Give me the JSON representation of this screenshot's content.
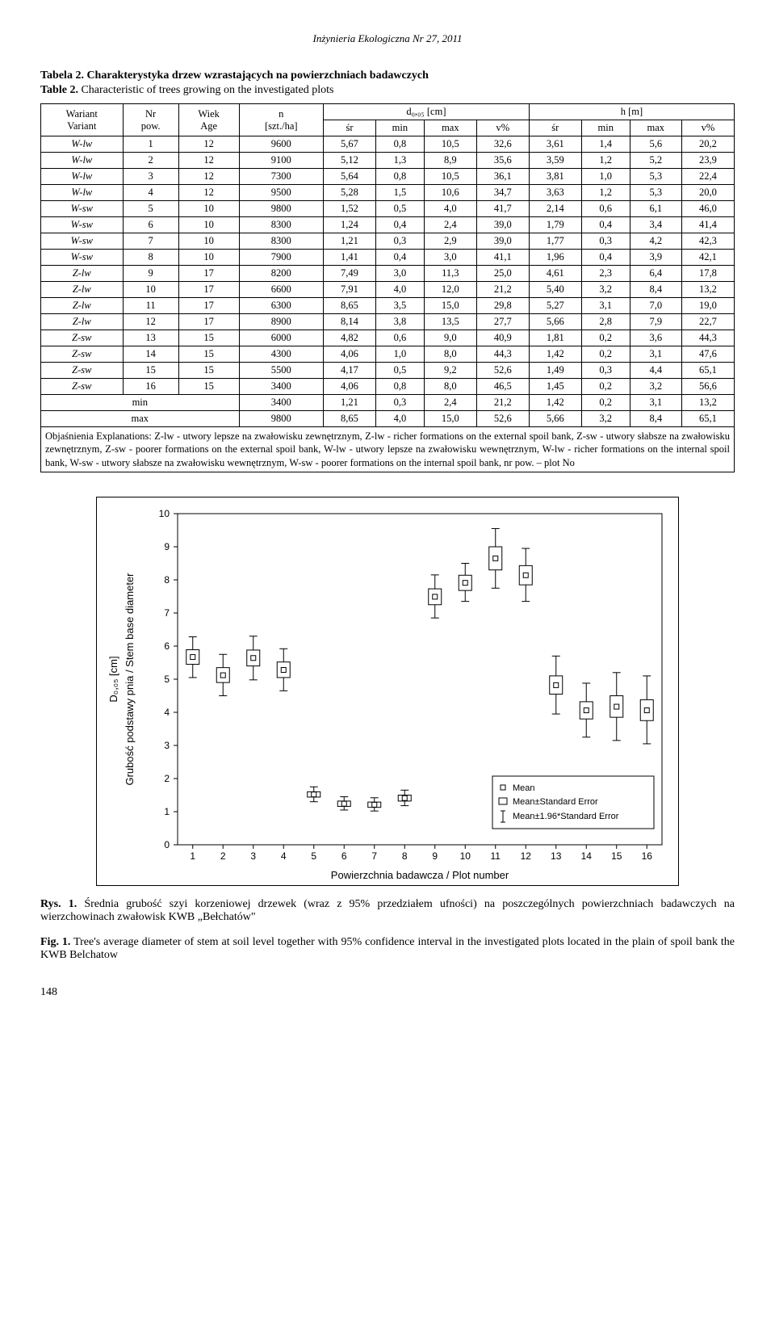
{
  "running_header": "Inżynieria Ekologiczna Nr 27, 2011",
  "table_caption_pl": "Tabela 2. Charakterystyka drzew wzrastających na powierzchniach badawczych",
  "table_caption_en_bold": "Table 2.",
  "table_caption_en_rest": " Characteristic of trees growing on the investigated plots",
  "headers": {
    "wariant": "Wariant",
    "variant": "Variant",
    "nr": "Nr",
    "pow": "pow.",
    "wiek": "Wiek",
    "age": "Age",
    "n": "n",
    "n_unit": "[szt./ha]",
    "d_label": "d₀,₀₅ [cm]",
    "h_label": "h [m]",
    "sr": "śr",
    "min": "min",
    "max": "max",
    "vpct": "v%"
  },
  "rows": [
    [
      "W-lw",
      "1",
      "12",
      "9600",
      "5,67",
      "0,8",
      "10,5",
      "32,6",
      "3,61",
      "1,4",
      "5,6",
      "20,2"
    ],
    [
      "W-lw",
      "2",
      "12",
      "9100",
      "5,12",
      "1,3",
      "8,9",
      "35,6",
      "3,59",
      "1,2",
      "5,2",
      "23,9"
    ],
    [
      "W-lw",
      "3",
      "12",
      "7300",
      "5,64",
      "0,8",
      "10,5",
      "36,1",
      "3,81",
      "1,0",
      "5,3",
      "22,4"
    ],
    [
      "W-lw",
      "4",
      "12",
      "9500",
      "5,28",
      "1,5",
      "10,6",
      "34,7",
      "3,63",
      "1,2",
      "5,3",
      "20,0"
    ],
    [
      "W-sw",
      "5",
      "10",
      "9800",
      "1,52",
      "0,5",
      "4,0",
      "41,7",
      "2,14",
      "0,6",
      "6,1",
      "46,0"
    ],
    [
      "W-sw",
      "6",
      "10",
      "8300",
      "1,24",
      "0,4",
      "2,4",
      "39,0",
      "1,79",
      "0,4",
      "3,4",
      "41,4"
    ],
    [
      "W-sw",
      "7",
      "10",
      "8300",
      "1,21",
      "0,3",
      "2,9",
      "39,0",
      "1,77",
      "0,3",
      "4,2",
      "42,3"
    ],
    [
      "W-sw",
      "8",
      "10",
      "7900",
      "1,41",
      "0,4",
      "3,0",
      "41,1",
      "1,96",
      "0,4",
      "3,9",
      "42,1"
    ],
    [
      "Z-lw",
      "9",
      "17",
      "8200",
      "7,49",
      "3,0",
      "11,3",
      "25,0",
      "4,61",
      "2,3",
      "6,4",
      "17,8"
    ],
    [
      "Z-lw",
      "10",
      "17",
      "6600",
      "7,91",
      "4,0",
      "12,0",
      "21,2",
      "5,40",
      "3,2",
      "8,4",
      "13,2"
    ],
    [
      "Z-lw",
      "11",
      "17",
      "6300",
      "8,65",
      "3,5",
      "15,0",
      "29,8",
      "5,27",
      "3,1",
      "7,0",
      "19,0"
    ],
    [
      "Z-lw",
      "12",
      "17",
      "8900",
      "8,14",
      "3,8",
      "13,5",
      "27,7",
      "5,66",
      "2,8",
      "7,9",
      "22,7"
    ],
    [
      "Z-sw",
      "13",
      "15",
      "6000",
      "4,82",
      "0,6",
      "9,0",
      "40,9",
      "1,81",
      "0,2",
      "3,6",
      "44,3"
    ],
    [
      "Z-sw",
      "14",
      "15",
      "4300",
      "4,06",
      "1,0",
      "8,0",
      "44,3",
      "1,42",
      "0,2",
      "3,1",
      "47,6"
    ],
    [
      "Z-sw",
      "15",
      "15",
      "5500",
      "4,17",
      "0,5",
      "9,2",
      "52,6",
      "1,49",
      "0,3",
      "4,4",
      "65,1"
    ],
    [
      "Z-sw",
      "16",
      "15",
      "3400",
      "4,06",
      "0,8",
      "8,0",
      "46,5",
      "1,45",
      "0,2",
      "3,2",
      "56,6"
    ]
  ],
  "summary": [
    [
      "min",
      "3400",
      "1,21",
      "0,3",
      "2,4",
      "21,2",
      "1,42",
      "0,2",
      "3,1",
      "13,2"
    ],
    [
      "max",
      "9800",
      "8,65",
      "4,0",
      "15,0",
      "52,6",
      "5,66",
      "3,2",
      "8,4",
      "65,1"
    ]
  ],
  "explanation": "Objaśnienia Explanations: Z-lw - utwory lepsze na zwałowisku zewnętrznym, Z-lw - richer formations on the external spoil bank, Z-sw - utwory słabsze na zwałowisku zewnętrznym, Z-sw - poorer formations on the external spoil bank, W-lw - utwory lepsze na zwałowisku wewnętrznym, W-lw - richer formations on the internal spoil bank, W-sw - utwory słabsze na zwałowisku wewnętrznym, W-sw - poorer formations on the internal spoil bank, nr pow. – plot No",
  "chart": {
    "type": "boxplot",
    "y_label_1": "D₀,₀₅ [cm]",
    "y_label_2": "Grubość podstawy pnia / Stem base diameter",
    "x_label": "Powierzchnia badawcza / Plot number",
    "x_categories": [
      1,
      2,
      3,
      4,
      5,
      6,
      7,
      8,
      9,
      10,
      11,
      12,
      13,
      14,
      15,
      16
    ],
    "ylim": [
      0,
      10
    ],
    "ytick_step": 1,
    "background_color": "#ffffff",
    "border_color": "#000000",
    "marker_color": "#000000",
    "box_color": "#ffffff",
    "box_border": "#000000",
    "legend": {
      "mean": "Mean",
      "se": "Mean±Standard Error",
      "ci": "Mean±1.96*Standard Error"
    },
    "series": [
      {
        "x": 1,
        "mean": 5.67,
        "se_low": 5.45,
        "se_high": 5.89,
        "ci_low": 5.05,
        "ci_high": 6.28
      },
      {
        "x": 2,
        "mean": 5.12,
        "se_low": 4.9,
        "se_high": 5.35,
        "ci_low": 4.5,
        "ci_high": 5.75
      },
      {
        "x": 3,
        "mean": 5.64,
        "se_low": 5.4,
        "se_high": 5.88,
        "ci_low": 4.98,
        "ci_high": 6.3
      },
      {
        "x": 4,
        "mean": 5.28,
        "se_low": 5.05,
        "se_high": 5.52,
        "ci_low": 4.65,
        "ci_high": 5.92
      },
      {
        "x": 5,
        "mean": 1.52,
        "se_low": 1.44,
        "se_high": 1.6,
        "ci_low": 1.3,
        "ci_high": 1.75
      },
      {
        "x": 6,
        "mean": 1.24,
        "se_low": 1.16,
        "se_high": 1.32,
        "ci_low": 1.05,
        "ci_high": 1.45
      },
      {
        "x": 7,
        "mean": 1.21,
        "se_low": 1.13,
        "se_high": 1.29,
        "ci_low": 1.02,
        "ci_high": 1.42
      },
      {
        "x": 8,
        "mean": 1.41,
        "se_low": 1.32,
        "se_high": 1.5,
        "ci_low": 1.18,
        "ci_high": 1.65
      },
      {
        "x": 9,
        "mean": 7.49,
        "se_low": 7.25,
        "se_high": 7.73,
        "ci_low": 6.85,
        "ci_high": 8.15
      },
      {
        "x": 10,
        "mean": 7.91,
        "se_low": 7.68,
        "se_high": 8.14,
        "ci_low": 7.35,
        "ci_high": 8.5
      },
      {
        "x": 11,
        "mean": 8.65,
        "se_low": 8.3,
        "se_high": 9.0,
        "ci_low": 7.75,
        "ci_high": 9.55
      },
      {
        "x": 12,
        "mean": 8.14,
        "se_low": 7.85,
        "se_high": 8.43,
        "ci_low": 7.35,
        "ci_high": 8.95
      },
      {
        "x": 13,
        "mean": 4.82,
        "se_low": 4.55,
        "se_high": 5.1,
        "ci_low": 3.95,
        "ci_high": 5.7
      },
      {
        "x": 14,
        "mean": 4.06,
        "se_low": 3.8,
        "se_high": 4.32,
        "ci_low": 3.25,
        "ci_high": 4.88
      },
      {
        "x": 15,
        "mean": 4.17,
        "se_low": 3.85,
        "se_high": 4.5,
        "ci_low": 3.15,
        "ci_high": 5.2
      },
      {
        "x": 16,
        "mean": 4.06,
        "se_low": 3.75,
        "se_high": 4.38,
        "ci_low": 3.05,
        "ci_high": 5.1
      }
    ]
  },
  "fig_caption_pl_bold": "Rys. 1.",
  "fig_caption_pl_rest": " Średnia grubość szyi korzeniowej drzewek (wraz z 95% przedziałem ufności) na poszczególnych powierzchniach badawczych na wierzchowinach zwałowisk KWB „Bełchatów\"",
  "fig_caption_en_bold": "Fig. 1.",
  "fig_caption_en_rest": " Tree's average diameter of stem at soil level together with 95% confidence interval in the investigated plots located in the plain of spoil bank the KWB Belchatow",
  "page_number": "148"
}
